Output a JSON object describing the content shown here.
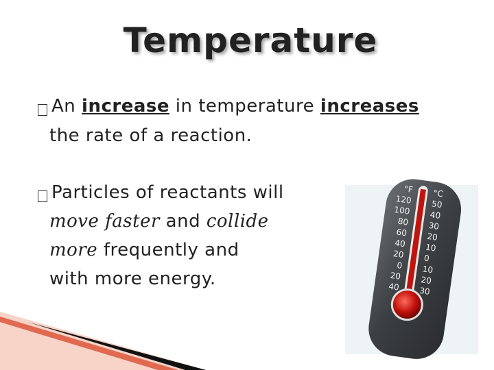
{
  "header": {
    "title": "Temperature"
  },
  "bullets": [
    {
      "lines": [
        [
          {
            "text": "An "
          },
          {
            "text": "increase",
            "style": "bold-underline"
          },
          {
            "text": " in temperature "
          },
          {
            "text": "increases",
            "style": "bold-underline"
          }
        ],
        [
          {
            "text": "the rate of a reaction."
          }
        ]
      ]
    },
    {
      "lines": [
        [
          {
            "text": "Particles of reactants will"
          }
        ],
        [
          {
            "text": "move faster",
            "style": "italic"
          },
          {
            "text": " and "
          },
          {
            "text": "collide",
            "style": "italic"
          }
        ],
        [
          {
            "text": "more",
            "style": "italic"
          },
          {
            "text": " frequently and"
          }
        ],
        [
          {
            "text": "with more energy."
          }
        ]
      ]
    }
  ],
  "thermometer": {
    "left_labels": [
      "°F",
      "120",
      "100",
      "80",
      "60",
      "40",
      "20",
      "0",
      "20",
      "40"
    ],
    "right_labels": [
      "°C",
      "50",
      "40",
      "30",
      "20",
      "10",
      "0",
      "10",
      "20",
      "30"
    ]
  }
}
